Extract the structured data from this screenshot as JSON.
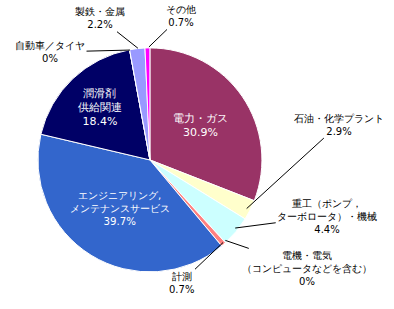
{
  "chart_data": {
    "type": "pie",
    "categories": [
      "電力・ガス",
      "石油・化学プラント",
      "重工（ポンプ，\nターボロータ）・機械",
      "電機・電気\n（コンピュータなどを含む）",
      "計測",
      "エンジニアリング,\nメンテナンスサービス",
      "潤滑剤\n供給関連",
      "自動車／タイヤ",
      "製鉄・金属",
      "その他"
    ],
    "values": [
      30.9,
      2.9,
      4.4,
      0,
      0.7,
      39.7,
      18.4,
      0,
      2.2,
      0.7
    ],
    "value_labels": [
      "30.9%",
      "2.9%",
      "4.4%",
      "0%",
      "0.7%",
      "39.7%",
      "18.4%",
      "0%",
      "2.2%",
      "0.7%"
    ],
    "colors": [
      "#993366",
      "#ffffcc",
      "#ccffff",
      "#ffcc99",
      "#ff8080",
      "#3366cc",
      "#000066",
      "#c0c0c0",
      "#9999ff",
      "#ff00ff"
    ],
    "data_labels": true
  }
}
